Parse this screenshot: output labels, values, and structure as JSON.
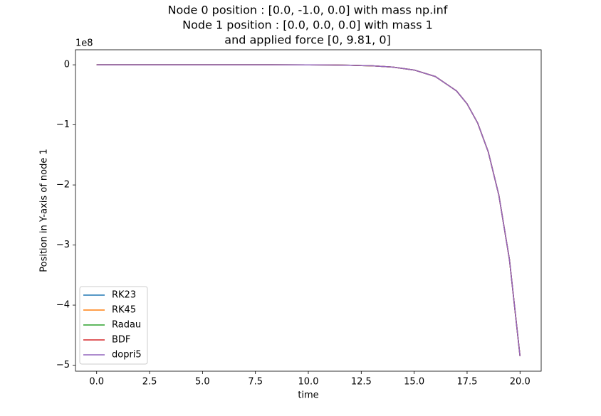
{
  "chart_data": {
    "type": "line",
    "title": [
      "Node 0 position : [0.0, -1.0, 0.0] with mass np.inf",
      "Node 1 position : [0.0, 0.0, 0.0] with mass 1",
      "and applied force [0, 9.81, 0]"
    ],
    "x_label": "time",
    "y_label": "Position in Y-axis of node 1",
    "y_offset_label": "1e8",
    "x": [
      0,
      2,
      4,
      6,
      8,
      10,
      11,
      12,
      13,
      14,
      15,
      16,
      17,
      17.5,
      18,
      18.5,
      19,
      19.5,
      20
    ],
    "series": [
      {
        "name": "RK23",
        "color": "#1f77b4",
        "values": [
          0,
          0,
          0,
          0,
          0,
          -0.002,
          -0.003,
          -0.008,
          -0.017,
          -0.039,
          -0.087,
          -0.195,
          -0.435,
          -0.65,
          -0.97,
          -1.45,
          -2.17,
          -3.24,
          -4.85
        ]
      },
      {
        "name": "RK45",
        "color": "#ff7f0e",
        "values": [
          0,
          0,
          0,
          0,
          0,
          -0.002,
          -0.003,
          -0.008,
          -0.017,
          -0.039,
          -0.087,
          -0.195,
          -0.435,
          -0.65,
          -0.97,
          -1.45,
          -2.17,
          -3.24,
          -4.85
        ]
      },
      {
        "name": "Radau",
        "color": "#2ca02c",
        "values": [
          0,
          0,
          0,
          0,
          0,
          -0.002,
          -0.003,
          -0.008,
          -0.017,
          -0.039,
          -0.087,
          -0.195,
          -0.435,
          -0.65,
          -0.97,
          -1.45,
          -2.17,
          -3.24,
          -4.85
        ]
      },
      {
        "name": "BDF",
        "color": "#d62728",
        "values": [
          0,
          0,
          0,
          0,
          0,
          -0.002,
          -0.003,
          -0.008,
          -0.017,
          -0.039,
          -0.087,
          -0.195,
          -0.435,
          -0.65,
          -0.97,
          -1.45,
          -2.17,
          -3.24,
          -4.85
        ]
      },
      {
        "name": "dopri5",
        "color": "#9467bd",
        "values": [
          0,
          0,
          0,
          0,
          0,
          -0.002,
          -0.003,
          -0.008,
          -0.017,
          -0.039,
          -0.087,
          -0.195,
          -0.435,
          -0.65,
          -0.97,
          -1.45,
          -2.17,
          -3.24,
          -4.85
        ]
      }
    ],
    "xlim": [
      -1.0,
      21.0
    ],
    "xticks": [
      {
        "value": 0,
        "label": "0.0"
      },
      {
        "value": 2.5,
        "label": "2.5"
      },
      {
        "value": 5,
        "label": "5.0"
      },
      {
        "value": 7.5,
        "label": "7.5"
      },
      {
        "value": 10,
        "label": "10.0"
      },
      {
        "value": 12.5,
        "label": "12.5"
      },
      {
        "value": 15,
        "label": "15.0"
      },
      {
        "value": 17.5,
        "label": "17.5"
      },
      {
        "value": 20,
        "label": "20.0"
      }
    ],
    "ylim": [
      -5.1,
      0.25
    ],
    "yticks": [
      {
        "value": -5,
        "label": "−5"
      },
      {
        "value": -4,
        "label": "−4"
      },
      {
        "value": -3,
        "label": "−3"
      },
      {
        "value": -2,
        "label": "−2"
      },
      {
        "value": -1,
        "label": "−1"
      },
      0
    ],
    "legend": "lower left",
    "grid": false
  }
}
